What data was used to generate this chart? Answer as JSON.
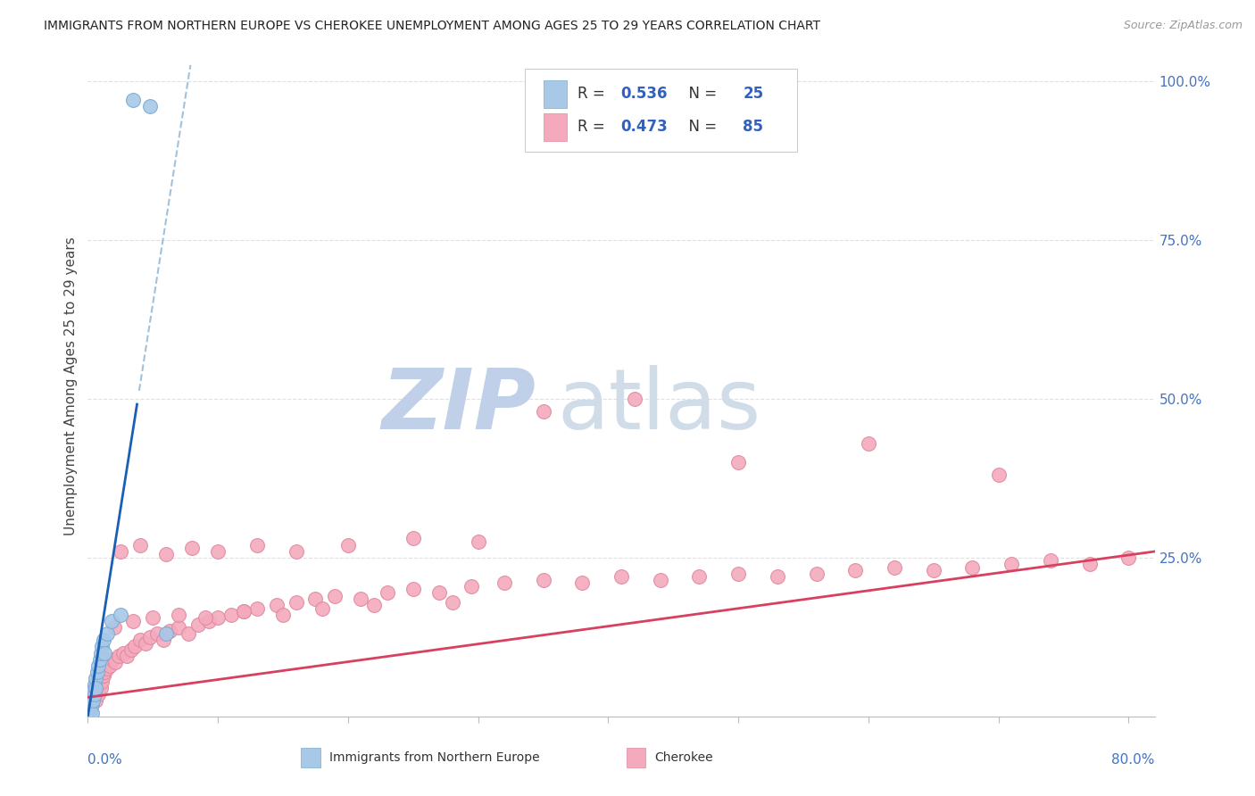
{
  "title": "IMMIGRANTS FROM NORTHERN EUROPE VS CHEROKEE UNEMPLOYMENT AMONG AGES 25 TO 29 YEARS CORRELATION CHART",
  "source": "Source: ZipAtlas.com",
  "ylabel": "Unemployment Among Ages 25 to 29 years",
  "blue_label": "Immigrants from Northern Europe",
  "pink_label": "Cherokee",
  "blue_R": "0.536",
  "blue_N": "25",
  "pink_R": "0.473",
  "pink_N": "85",
  "blue_scatter_color": "#A8C8E8",
  "blue_scatter_edge": "#7AAAD0",
  "pink_scatter_color": "#F4AABC",
  "pink_scatter_edge": "#E088A0",
  "trend_blue_solid": "#1A5FB5",
  "trend_blue_dash": "#90B8D8",
  "trend_pink": "#D84060",
  "legend_text_dark": "#333333",
  "legend_val_color": "#3060C0",
  "ytick_color": "#4472C4",
  "xlabel_color": "#4472C4",
  "watermark_zip_color": "#C0D0E8",
  "watermark_atlas_color": "#D0DDE8",
  "grid_color": "#E0E0E0",
  "blue_x": [
    0.001,
    0.002,
    0.002,
    0.003,
    0.003,
    0.003,
    0.004,
    0.004,
    0.005,
    0.005,
    0.006,
    0.006,
    0.007,
    0.008,
    0.009,
    0.01,
    0.011,
    0.012,
    0.013,
    0.015,
    0.018,
    0.025,
    0.035,
    0.048,
    0.06
  ],
  "blue_y": [
    0.005,
    0.01,
    0.015,
    0.02,
    0.03,
    0.005,
    0.04,
    0.025,
    0.05,
    0.035,
    0.06,
    0.045,
    0.07,
    0.08,
    0.09,
    0.1,
    0.11,
    0.12,
    0.1,
    0.13,
    0.15,
    0.16,
    0.97,
    0.96,
    0.13
  ],
  "pink_x": [
    0.003,
    0.004,
    0.005,
    0.006,
    0.007,
    0.008,
    0.009,
    0.01,
    0.011,
    0.012,
    0.013,
    0.015,
    0.017,
    0.019,
    0.021,
    0.024,
    0.027,
    0.03,
    0.033,
    0.036,
    0.04,
    0.044,
    0.048,
    0.053,
    0.058,
    0.063,
    0.07,
    0.077,
    0.085,
    0.093,
    0.1,
    0.11,
    0.12,
    0.13,
    0.145,
    0.16,
    0.175,
    0.19,
    0.21,
    0.23,
    0.25,
    0.27,
    0.295,
    0.32,
    0.35,
    0.38,
    0.41,
    0.44,
    0.47,
    0.5,
    0.53,
    0.56,
    0.59,
    0.62,
    0.65,
    0.68,
    0.71,
    0.74,
    0.77,
    0.8,
    0.025,
    0.04,
    0.06,
    0.08,
    0.1,
    0.13,
    0.16,
    0.2,
    0.25,
    0.3,
    0.02,
    0.035,
    0.05,
    0.07,
    0.09,
    0.12,
    0.15,
    0.18,
    0.22,
    0.28,
    0.35,
    0.42,
    0.5,
    0.6,
    0.7
  ],
  "pink_y": [
    0.02,
    0.03,
    0.04,
    0.025,
    0.05,
    0.035,
    0.06,
    0.045,
    0.055,
    0.065,
    0.07,
    0.075,
    0.08,
    0.09,
    0.085,
    0.095,
    0.1,
    0.095,
    0.105,
    0.11,
    0.12,
    0.115,
    0.125,
    0.13,
    0.12,
    0.135,
    0.14,
    0.13,
    0.145,
    0.15,
    0.155,
    0.16,
    0.165,
    0.17,
    0.175,
    0.18,
    0.185,
    0.19,
    0.185,
    0.195,
    0.2,
    0.195,
    0.205,
    0.21,
    0.215,
    0.21,
    0.22,
    0.215,
    0.22,
    0.225,
    0.22,
    0.225,
    0.23,
    0.235,
    0.23,
    0.235,
    0.24,
    0.245,
    0.24,
    0.25,
    0.26,
    0.27,
    0.255,
    0.265,
    0.26,
    0.27,
    0.26,
    0.27,
    0.28,
    0.275,
    0.14,
    0.15,
    0.155,
    0.16,
    0.155,
    0.165,
    0.16,
    0.17,
    0.175,
    0.18,
    0.48,
    0.5,
    0.4,
    0.43,
    0.38
  ],
  "blue_slope": 13.0,
  "blue_intercept": 0.0,
  "pink_slope": 0.28,
  "pink_intercept": 0.03,
  "xlim": [
    0,
    0.82
  ],
  "ylim": [
    0,
    1.04
  ],
  "yticks": [
    0.0,
    0.25,
    0.5,
    0.75,
    1.0
  ],
  "ytick_labels": [
    "",
    "25.0%",
    "50.0%",
    "75.0%",
    "100.0%"
  ]
}
